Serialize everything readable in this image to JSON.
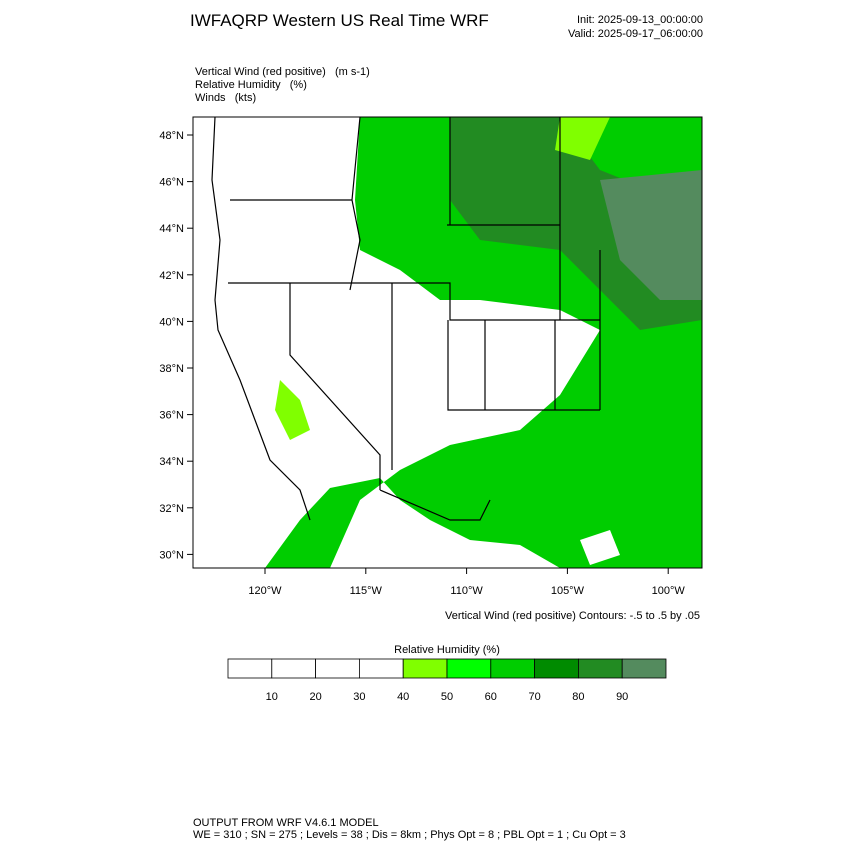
{
  "header": {
    "title": "IWFAQRP Western US Real Time WRF",
    "init": "Init: 2025-09-13_00:00:00",
    "valid": "Valid: 2025-09-17_06:00:00"
  },
  "fields": [
    "Vertical Wind (red positive)   (m s-1)",
    "Relative Humidity   (%)",
    "Winds   (kts)"
  ],
  "map": {
    "lat_labels": [
      "48°N",
      "46°N",
      "44°N",
      "42°N",
      "40°N",
      "38°N",
      "36°N",
      "34°N",
      "32°N",
      "30°N"
    ],
    "lon_labels": [
      "120°W",
      "115°W",
      "110°W",
      "105°W",
      "100°W"
    ],
    "contour_note": "Vertical Wind (red positive) Contours: -.5 to .5 by .05"
  },
  "colorbar": {
    "title": "Relative Humidity  (%)",
    "labels": [
      "10",
      "20",
      "30",
      "40",
      "50",
      "60",
      "70",
      "80",
      "90"
    ],
    "colors": [
      "#ffffff",
      "#ffffff",
      "#ffffff",
      "#ffffff",
      "#80ff00",
      "#00ff00",
      "#00cd00",
      "#008b00",
      "#228b22",
      "#548b5e"
    ]
  },
  "footer": [
    "OUTPUT FROM WRF V4.6.1 MODEL",
    "WE = 310 ; SN = 275 ; Levels = 38 ; Dis = 8km ; Phys Opt = 8 ; PBL Opt = 1 ; Cu Opt = 3"
  ]
}
